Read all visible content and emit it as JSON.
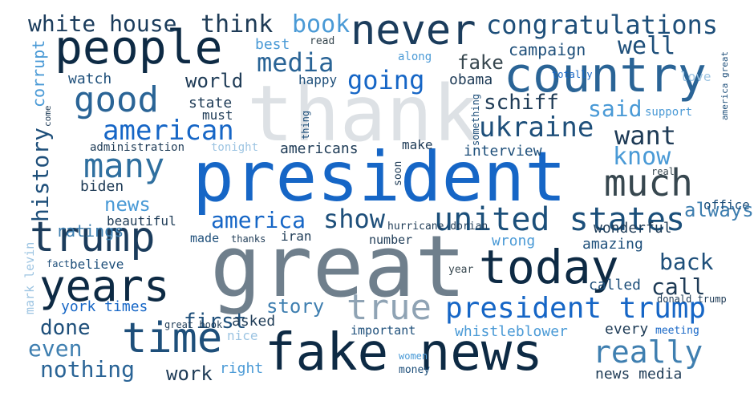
{
  "palette": {
    "pale_grey": "#dde1e5",
    "mid_grey": "#6f7f8c",
    "dark_navy": "#0d2a44",
    "deep_blue": "#1e4f7a",
    "royal_blue": "#1666c6",
    "sky_blue": "#4a9ad6",
    "light_blue": "#9cc4e2"
  },
  "words": [
    {
      "text": "thank",
      "color": "#dde1e5"
    },
    {
      "text": "president",
      "color": "#1666c6"
    },
    {
      "text": "great",
      "color": "#6f7f8c"
    },
    {
      "text": "fake news",
      "color": "#0d2a44"
    },
    {
      "text": "country",
      "color": "#2a6496"
    },
    {
      "text": "people",
      "color": "#0d2a44"
    },
    {
      "text": "never",
      "color": "#1b3c5c"
    },
    {
      "text": "today",
      "color": "#0d2a44"
    },
    {
      "text": "trump",
      "color": "#1b3c5c"
    },
    {
      "text": "time",
      "color": "#1e4f7a"
    },
    {
      "text": "years",
      "color": "#0d2a44"
    },
    {
      "text": "true",
      "color": "#8fa3b4"
    },
    {
      "text": "good",
      "color": "#2a6496"
    },
    {
      "text": "many",
      "color": "#2f6f9f"
    },
    {
      "text": "much",
      "color": "#37474f"
    },
    {
      "text": "united states",
      "color": "#1b4f7a"
    },
    {
      "text": "president trump",
      "color": "#1666c6"
    },
    {
      "text": "really",
      "color": "#3f7fb0"
    },
    {
      "text": "congratulations",
      "color": "#1e4f7a"
    },
    {
      "text": "white house",
      "color": "#1b3c5c"
    },
    {
      "text": "think",
      "color": "#1e3b56"
    },
    {
      "text": "book",
      "color": "#4a9ad6"
    },
    {
      "text": "media",
      "color": "#2a6496"
    },
    {
      "text": "well",
      "color": "#1e4f7a"
    },
    {
      "text": "american",
      "color": "#1666c6"
    },
    {
      "text": "want",
      "color": "#1e3b56"
    },
    {
      "text": "ukraine",
      "color": "#1e4f7a"
    },
    {
      "text": "going",
      "color": "#1666c6"
    },
    {
      "text": "show",
      "color": "#1e4f7a"
    },
    {
      "text": "america",
      "color": "#1666c6"
    },
    {
      "text": "know",
      "color": "#4a9ad6"
    },
    {
      "text": "said",
      "color": "#4a9ad6"
    },
    {
      "text": "schiff",
      "color": "#1e3b56"
    },
    {
      "text": "back",
      "color": "#1e4f7a"
    },
    {
      "text": "call",
      "color": "#1e3b56"
    },
    {
      "text": "story",
      "color": "#3f7fb0"
    },
    {
      "text": "done",
      "color": "#1e4f7a"
    },
    {
      "text": "even",
      "color": "#3f7fb0"
    },
    {
      "text": "nothing",
      "color": "#2a6496"
    },
    {
      "text": "fake",
      "color": "#37474f"
    },
    {
      "text": "campaign",
      "color": "#1e4f7a"
    },
    {
      "text": "world",
      "color": "#1e3b56"
    },
    {
      "text": "history",
      "color": "#1e4f7a"
    },
    {
      "text": "first",
      "color": "#1e4f7a"
    },
    {
      "text": "news",
      "color": "#4a9ad6"
    },
    {
      "text": "work",
      "color": "#1e3b56"
    },
    {
      "text": "always",
      "color": "#3f7fb0"
    },
    {
      "text": "watch",
      "color": "#1e4f7a"
    },
    {
      "text": "state",
      "color": "#1e3b56"
    },
    {
      "text": "must",
      "color": "#1e3b56"
    },
    {
      "text": "obama",
      "color": "#1e3b56"
    },
    {
      "text": "happy",
      "color": "#1e4f7a"
    },
    {
      "text": "best",
      "color": "#4a9ad6"
    },
    {
      "text": "along",
      "color": "#4a9ad6"
    },
    {
      "text": "read",
      "color": "#37474f"
    },
    {
      "text": "love",
      "color": "#9cc4e2"
    },
    {
      "text": "support",
      "color": "#4a9ad6"
    },
    {
      "text": "americans",
      "color": "#1e3b56"
    },
    {
      "text": "make",
      "color": "#1e3b56"
    },
    {
      "text": "interview",
      "color": "#1e4f7a"
    },
    {
      "text": "administration",
      "color": "#1e3b56"
    },
    {
      "text": "tonight",
      "color": "#9cc4e2"
    },
    {
      "text": "biden",
      "color": "#1e3b56"
    },
    {
      "text": "beautiful",
      "color": "#1e3b56"
    },
    {
      "text": "ratings",
      "color": "#3f7fb0"
    },
    {
      "text": "wonderful",
      "color": "#1e3b56"
    },
    {
      "text": "real",
      "color": "#37474f"
    },
    {
      "text": "office",
      "color": "#1e4f7a"
    },
    {
      "text": "hurricane dorian",
      "color": "#1e3b56"
    },
    {
      "text": "iran",
      "color": "#1e3b56"
    },
    {
      "text": "made",
      "color": "#1e4f7a"
    },
    {
      "text": "thanks",
      "color": "#1e3b56"
    },
    {
      "text": "number",
      "color": "#1e3b56"
    },
    {
      "text": "wrong",
      "color": "#4a9ad6"
    },
    {
      "text": "amazing",
      "color": "#1e4f7a"
    },
    {
      "text": "believe",
      "color": "#1e4f7a"
    },
    {
      "text": "york times",
      "color": "#1666c6"
    },
    {
      "text": "asked",
      "color": "#1e3b56"
    },
    {
      "text": "called",
      "color": "#1e4f7a"
    },
    {
      "text": "year",
      "color": "#37474f"
    },
    {
      "text": "donald trump",
      "color": "#1e3b56"
    },
    {
      "text": "every",
      "color": "#1e3b56"
    },
    {
      "text": "meeting",
      "color": "#1666c6"
    },
    {
      "text": "whistleblower",
      "color": "#4a9ad6"
    },
    {
      "text": "important",
      "color": "#1e4f7a"
    },
    {
      "text": "great book",
      "color": "#1e3b56"
    },
    {
      "text": "nice",
      "color": "#9cc4e2"
    },
    {
      "text": "right",
      "color": "#4a9ad6"
    },
    {
      "text": "women",
      "color": "#4a9ad6"
    },
    {
      "text": "money",
      "color": "#1e4f7a"
    },
    {
      "text": "news media",
      "color": "#1e3b56"
    },
    {
      "text": "corrupt",
      "color": "#4a9ad6"
    },
    {
      "text": "come",
      "color": "#1e3b56"
    },
    {
      "text": "fact",
      "color": "#1e4f7a"
    },
    {
      "text": "mark levin",
      "color": "#9cc4e2"
    },
    {
      "text": "totally",
      "color": "#1666c6"
    },
    {
      "text": "something",
      "color": "#1e4f7a"
    },
    {
      "text": "thing",
      "color": "#1e4f7a"
    },
    {
      "text": "soon",
      "color": "#1e3b56"
    },
    {
      "text": "america great",
      "color": "#1e4f7a"
    }
  ]
}
